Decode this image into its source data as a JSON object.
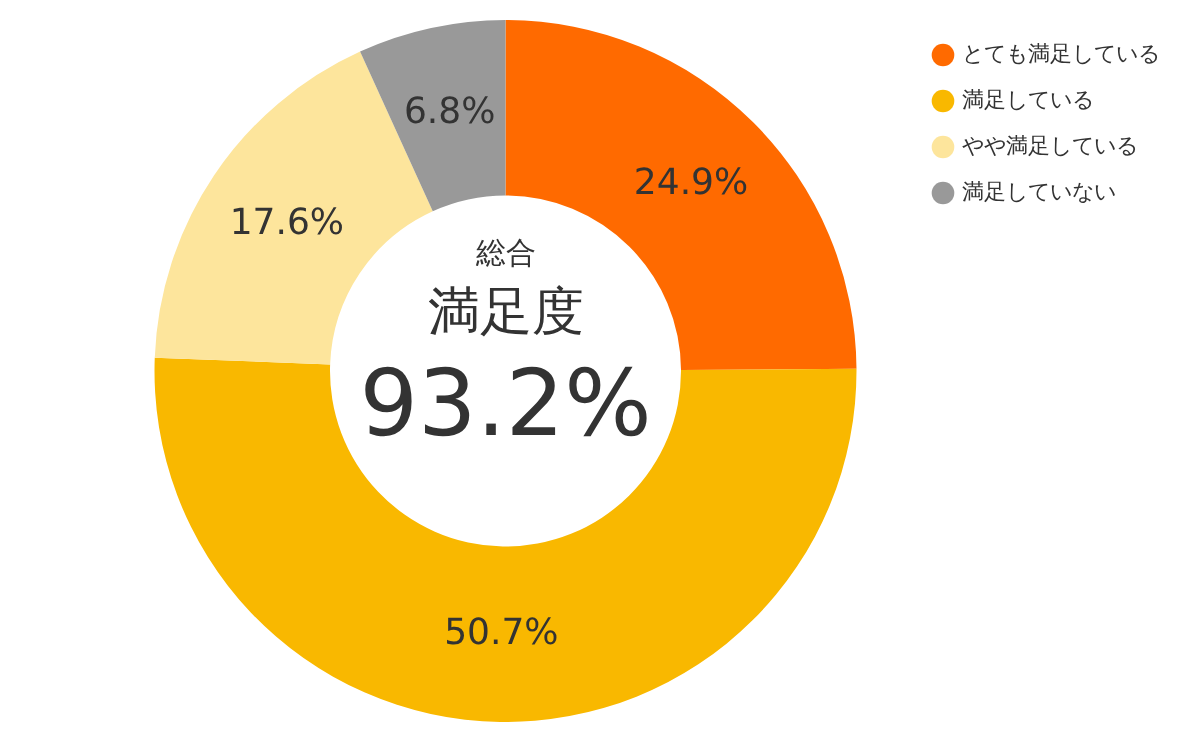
{
  "chart_data": {
    "type": "donut",
    "categories": [
      "とても満足している",
      "満足している",
      "やや満足している",
      "満足していない"
    ],
    "values": [
      24.9,
      50.7,
      17.6,
      6.8
    ],
    "colors": [
      "#ff6a00",
      "#f9b800",
      "#fde59c",
      "#999999"
    ],
    "value_labels": [
      "24.9%",
      "50.7%",
      "17.6%",
      "6.8%"
    ],
    "annotations": [
      "総合",
      "満足度",
      "93.2%"
    ],
    "legend": "top right"
  }
}
